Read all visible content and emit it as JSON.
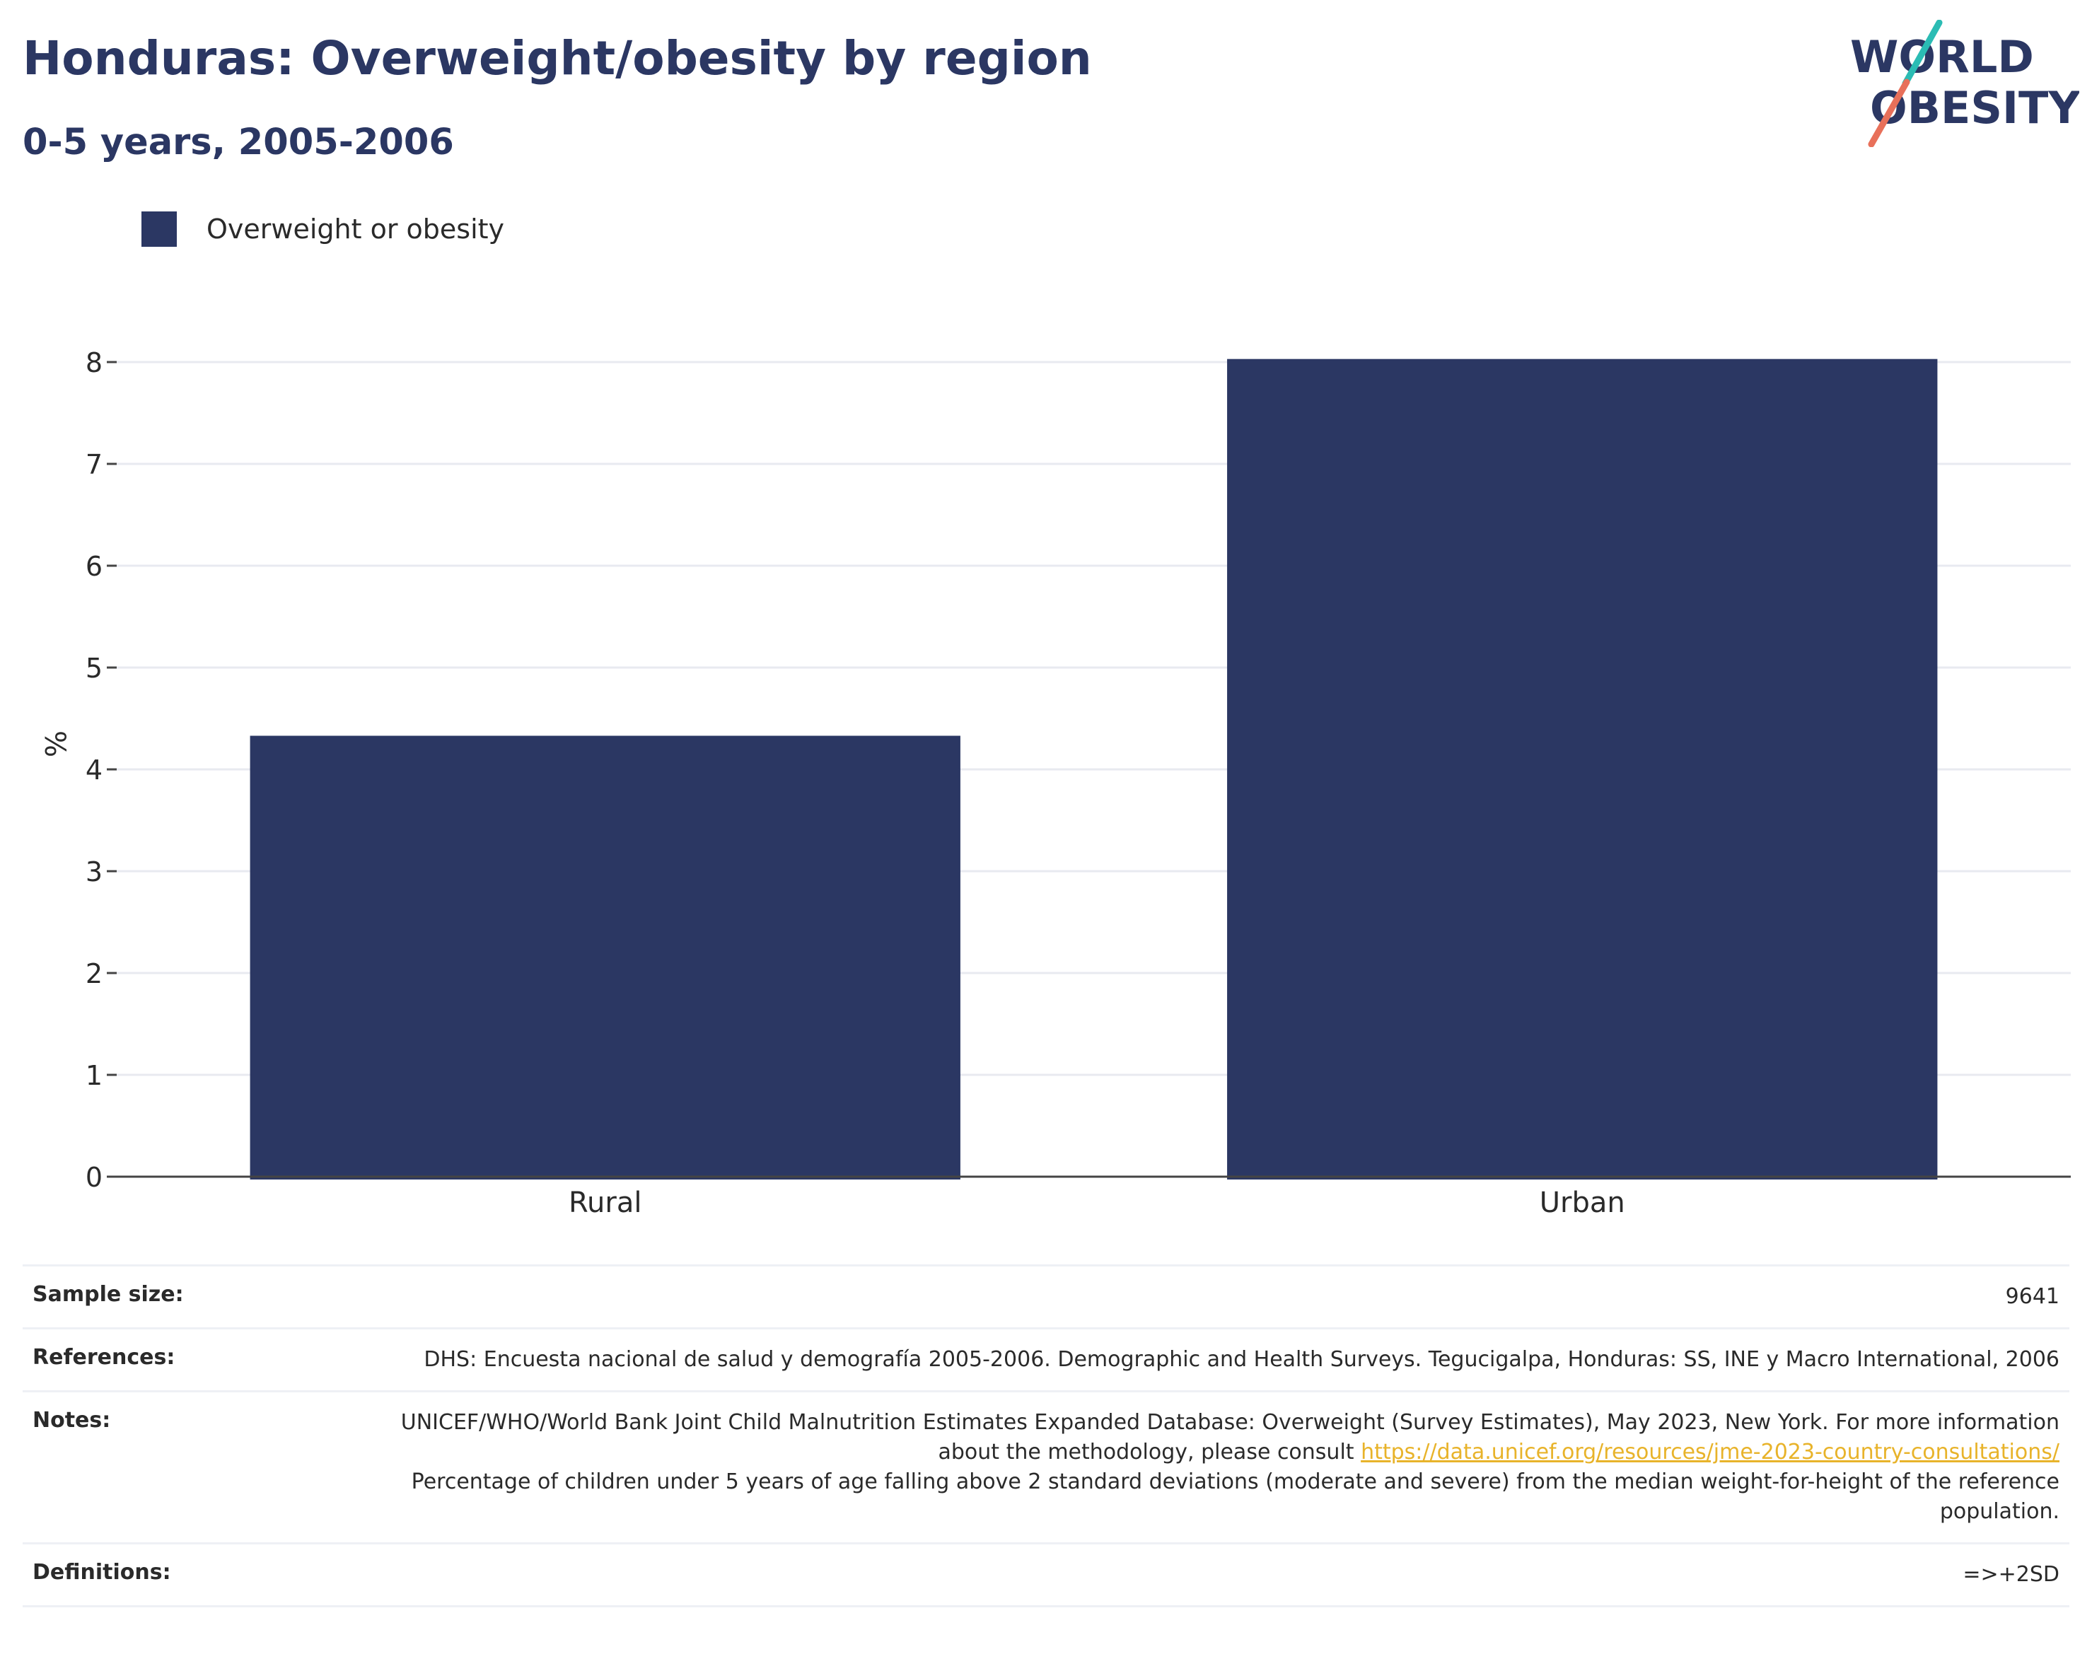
{
  "header": {
    "title": "Honduras: Overweight/obesity by region",
    "subtitle": "0-5 years, 2005-2006"
  },
  "logo": {
    "line1": "WORLD",
    "line2": "OBESITY",
    "colors": {
      "text": "#2b3763",
      "teal": "#2bbcb4",
      "coral": "#e8705a"
    }
  },
  "legend": {
    "label": "Overweight or obesity",
    "color": "#2b3763"
  },
  "chart_data": {
    "type": "bar",
    "categories": [
      "Rural",
      "Urban"
    ],
    "series": [
      {
        "name": "Overweight or obesity",
        "values": [
          4.33,
          8.03
        ],
        "color": "#2b3763"
      }
    ],
    "xlabel": "",
    "ylabel": "%",
    "ylim": [
      0,
      8.5
    ],
    "yticks": [
      0,
      1,
      2,
      3,
      4,
      5,
      6,
      7,
      8
    ],
    "grid": true,
    "legend_position": "top-left"
  },
  "info": {
    "sample_size_label": "Sample size:",
    "sample_size_value": "9641",
    "references_label": "References:",
    "references_value": "DHS: Encuesta nacional de salud y demografía 2005-2006. Demographic and Health Surveys. Tegucigalpa, Honduras: SS, INE y Macro International, 2006",
    "notes_label": "Notes:",
    "notes_before_link": "UNICEF/WHO/World Bank Joint Child Malnutrition Estimates Expanded Database: Overweight (Survey Estimates), May 2023, New York. For more information about the methodology, please consult ",
    "notes_link": "https://data.unicef.org/resources/jme-2023-country-consultations/",
    "notes_after_link": "Percentage of children under 5 years of age falling above 2 standard deviations (moderate and severe) from the median weight-for-height of the reference population.",
    "definitions_label": "Definitions:",
    "definitions_value": "=>+2SD"
  }
}
